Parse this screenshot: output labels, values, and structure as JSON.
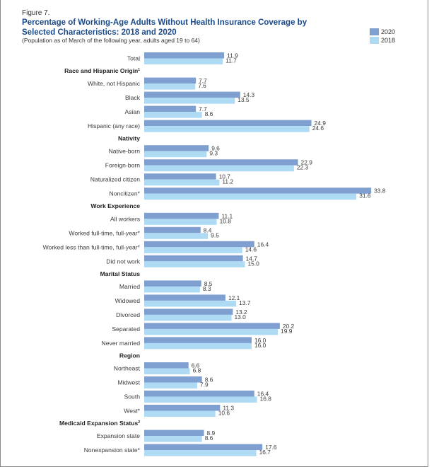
{
  "figure_label": "Figure 7.",
  "title": "Percentage of Working-Age Adults Without Health Insurance Coverage by Selected Characteristics: 2018 and 2020",
  "subtitle": "(Population as of March of the following year, adults aged 19 to 64)",
  "colors": {
    "2020": "#7f9fd1",
    "2018": "#aedbf3",
    "label": "#3a3a3a",
    "value": "#3a3a3a"
  },
  "chart_data": {
    "type": "bar",
    "orientation": "horizontal",
    "title": "Percentage of Working-Age Adults Without Health Insurance Coverage by Selected Characteristics: 2018 and 2020",
    "subtitle": "(Population as of March of the following year, adults aged 19 to 64)",
    "xlabel": "",
    "ylabel": "",
    "xlim": [
      0,
      35
    ],
    "grid": false,
    "legend": {
      "position": "top-right",
      "entries": [
        "2020",
        "2018"
      ]
    },
    "series_names": [
      "2020",
      "2018"
    ],
    "rows": [
      {
        "kind": "item",
        "label": "Total",
        "v2020": 11.9,
        "v2018": 11.7
      },
      {
        "kind": "header",
        "label": "Race and Hispanic Origin",
        "sup": "1"
      },
      {
        "kind": "item",
        "label": "White, not Hispanic",
        "v2020": 7.7,
        "v2018": 7.6
      },
      {
        "kind": "item",
        "label": "Black",
        "v2020": 14.3,
        "v2018": 13.5
      },
      {
        "kind": "item",
        "label": "Asian",
        "v2020": 7.7,
        "v2018": 8.6
      },
      {
        "kind": "item",
        "label": "Hispanic (any race)",
        "v2020": 24.9,
        "v2018": 24.6
      },
      {
        "kind": "header",
        "label": "Nativity",
        "sup": ""
      },
      {
        "kind": "item",
        "label": "Native-born",
        "v2020": 9.6,
        "v2018": 9.3
      },
      {
        "kind": "item",
        "label": "Foreign-born",
        "v2020": 22.9,
        "v2018": 22.3
      },
      {
        "kind": "item",
        "label": "Naturalized citizen",
        "v2020": 10.7,
        "v2018": 11.2
      },
      {
        "kind": "item",
        "label": "Noncitizen*",
        "v2020": 33.8,
        "v2018": 31.6
      },
      {
        "kind": "header",
        "label": "Work Experience",
        "sup": ""
      },
      {
        "kind": "item",
        "label": "All workers",
        "v2020": 11.1,
        "v2018": 10.8
      },
      {
        "kind": "item",
        "label": "Worked full-time, full-year*",
        "v2020": 8.4,
        "v2018": 9.5
      },
      {
        "kind": "item",
        "label": "Worked less than full-time, full-year*",
        "v2020": 16.4,
        "v2018": 14.6
      },
      {
        "kind": "item",
        "label": "Did not work",
        "v2020": 14.7,
        "v2018": 15.0
      },
      {
        "kind": "header",
        "label": "Marital Status",
        "sup": ""
      },
      {
        "kind": "item",
        "label": "Married",
        "v2020": 8.5,
        "v2018": 8.3
      },
      {
        "kind": "item",
        "label": "Widowed",
        "v2020": 12.1,
        "v2018": 13.7
      },
      {
        "kind": "item",
        "label": "Divorced",
        "v2020": 13.2,
        "v2018": 13.0
      },
      {
        "kind": "item",
        "label": "Separated",
        "v2020": 20.2,
        "v2018": 19.9
      },
      {
        "kind": "item",
        "label": "Never married",
        "v2020": 16.0,
        "v2018": 16.0
      },
      {
        "kind": "header",
        "label": "Region",
        "sup": ""
      },
      {
        "kind": "item",
        "label": "Northeast",
        "v2020": 6.6,
        "v2018": 6.8
      },
      {
        "kind": "item",
        "label": "Midwest",
        "v2020": 8.6,
        "v2018": 7.9
      },
      {
        "kind": "item",
        "label": "South",
        "v2020": 16.4,
        "v2018": 16.8
      },
      {
        "kind": "item",
        "label": "West*",
        "v2020": 11.3,
        "v2018": 10.6
      },
      {
        "kind": "header",
        "label": "Medicaid Expansion Status",
        "sup": "2"
      },
      {
        "kind": "item",
        "label": "Expansion state",
        "v2020": 8.9,
        "v2018": 8.6
      },
      {
        "kind": "item",
        "label": "Nonexpansion state*",
        "v2020": 17.6,
        "v2018": 16.7
      }
    ]
  }
}
